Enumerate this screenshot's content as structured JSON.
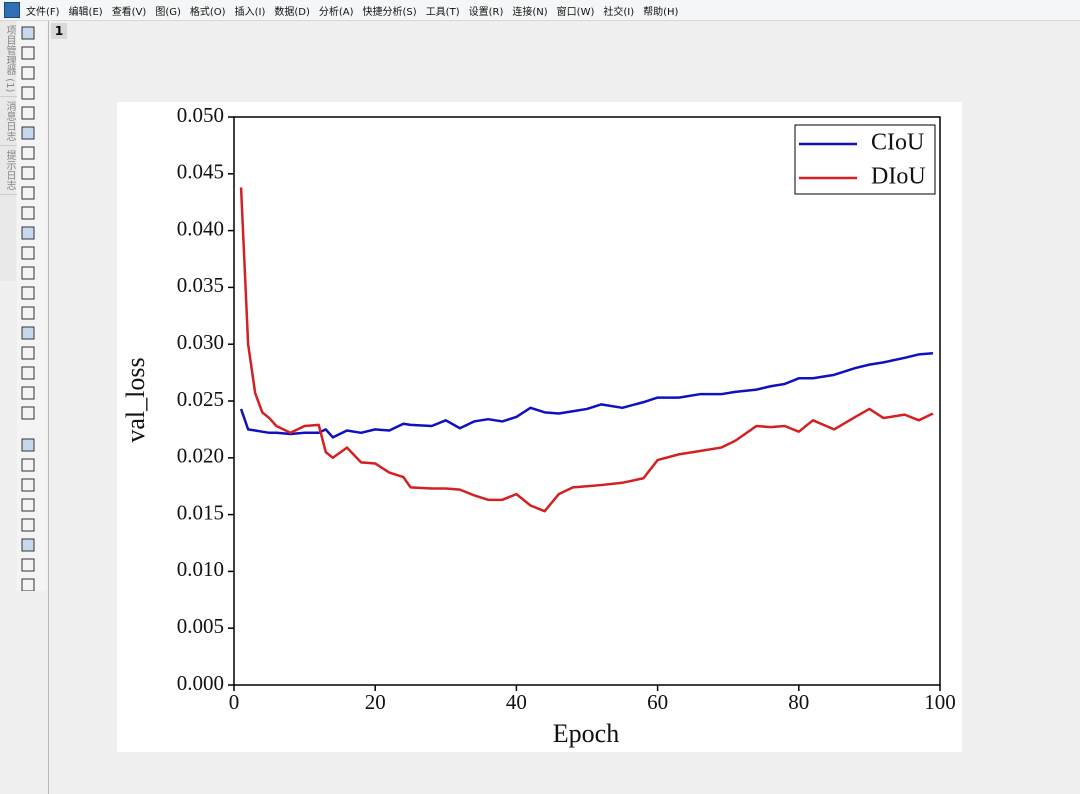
{
  "menu": [
    "文件(F)",
    "编辑(E)",
    "查看(V)",
    "图(G)",
    "格式(O)",
    "插入(I)",
    "数据(D)",
    "分析(A)",
    "快捷分析(S)",
    "工具(T)",
    "设置(R)",
    "连接(N)",
    "窗口(W)",
    "社交(I)",
    "帮助(H)"
  ],
  "side_panels": [
    "项目管理器 (1)",
    "消息日志",
    "提示日志"
  ],
  "tab": "1",
  "chart_data": {
    "type": "line",
    "x_label": "Epoch",
    "y_label": "val_loss",
    "x": [
      1,
      2,
      3,
      4,
      5,
      6,
      8,
      10,
      12,
      13,
      14,
      16,
      18,
      20,
      22,
      24,
      25,
      28,
      30,
      32,
      34,
      36,
      38,
      40,
      42,
      44,
      46,
      48,
      50,
      52,
      55,
      58,
      60,
      63,
      66,
      69,
      71,
      74,
      76,
      78,
      80,
      82,
      85,
      88,
      90,
      92,
      95,
      97,
      99
    ],
    "series": [
      {
        "name": "CIoU",
        "color": "#1010c0",
        "values": [
          0.0243,
          0.0225,
          0.0224,
          0.0223,
          0.0222,
          0.0222,
          0.0221,
          0.0222,
          0.0222,
          0.0225,
          0.0218,
          0.0224,
          0.0222,
          0.0225,
          0.0224,
          0.023,
          0.0229,
          0.0228,
          0.0233,
          0.0226,
          0.0232,
          0.0234,
          0.0232,
          0.0236,
          0.0244,
          0.024,
          0.0239,
          0.0241,
          0.0243,
          0.0247,
          0.0244,
          0.0249,
          0.0253,
          0.0253,
          0.0256,
          0.0256,
          0.0258,
          0.026,
          0.0263,
          0.0265,
          0.027,
          0.027,
          0.0273,
          0.0279,
          0.0282,
          0.0284,
          0.0288,
          0.0291,
          0.0292
        ]
      },
      {
        "name": "DIoU",
        "color": "#d42020",
        "values": [
          0.0438,
          0.03,
          0.0257,
          0.024,
          0.0235,
          0.0228,
          0.0222,
          0.0228,
          0.0229,
          0.0205,
          0.02,
          0.0209,
          0.0196,
          0.0195,
          0.0187,
          0.0183,
          0.0174,
          0.0173,
          0.0173,
          0.0172,
          0.0167,
          0.0163,
          0.0163,
          0.0168,
          0.0158,
          0.0153,
          0.0168,
          0.0174,
          0.0175,
          0.0176,
          0.0178,
          0.0182,
          0.0198,
          0.0203,
          0.0206,
          0.0209,
          0.0215,
          0.0228,
          0.0227,
          0.0228,
          0.0223,
          0.0233,
          0.0225,
          0.0236,
          0.0243,
          0.0235,
          0.0238,
          0.0233,
          0.0239
        ]
      }
    ],
    "xlim": [
      0,
      100
    ],
    "xticks": [
      0,
      20,
      40,
      60,
      80,
      100
    ],
    "ylim": [
      0,
      0.05
    ],
    "yticks": [
      {
        "value": 0,
        "label": "0.000"
      },
      {
        "value": 0.005,
        "label": "0.005"
      },
      {
        "value": 0.01,
        "label": "0.010"
      },
      {
        "value": 0.015,
        "label": "0.015"
      },
      {
        "value": 0.02,
        "label": "0.020"
      },
      {
        "value": 0.025,
        "label": "0.025"
      },
      {
        "value": 0.03,
        "label": "0.030"
      },
      {
        "value": 0.035,
        "label": "0.035"
      },
      {
        "value": 0.04,
        "label": "0.040"
      },
      {
        "value": 0.045,
        "label": "0.045"
      },
      {
        "value": 0.05,
        "label": "0.050"
      }
    ],
    "legend": "upper right"
  }
}
